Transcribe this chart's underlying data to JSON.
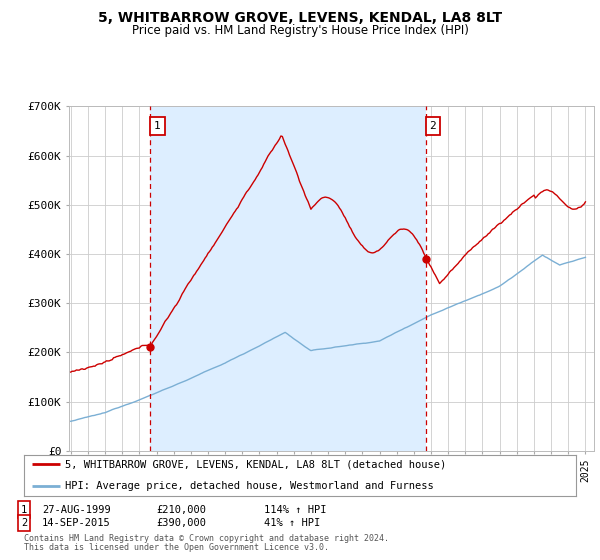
{
  "title": "5, WHITBARROW GROVE, LEVENS, KENDAL, LA8 8LT",
  "subtitle": "Price paid vs. HM Land Registry's House Price Index (HPI)",
  "ylim": [
    0,
    700000
  ],
  "yticks": [
    0,
    100000,
    200000,
    300000,
    400000,
    500000,
    600000,
    700000
  ],
  "ytick_labels": [
    "£0",
    "£100K",
    "£200K",
    "£300K",
    "£400K",
    "£500K",
    "£600K",
    "£700K"
  ],
  "hpi_color": "#7bafd4",
  "price_color": "#cc0000",
  "shade_color": "#ddeeff",
  "marker1_date": 1999.65,
  "marker1_price": 210000,
  "marker2_date": 2015.71,
  "marker2_price": 390000,
  "legend_property": "5, WHITBARROW GROVE, LEVENS, KENDAL, LA8 8LT (detached house)",
  "legend_hpi": "HPI: Average price, detached house, Westmorland and Furness",
  "footnote3": "Contains HM Land Registry data © Crown copyright and database right 2024.",
  "footnote4": "This data is licensed under the Open Government Licence v3.0.",
  "background_color": "#ffffff",
  "grid_color": "#cccccc",
  "xmin": 1995,
  "xmax": 2025
}
